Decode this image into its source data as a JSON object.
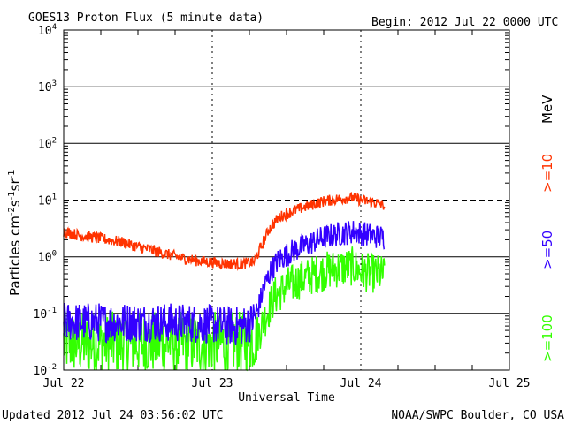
{
  "chart_data": {
    "type": "line",
    "title": "GOES13 Proton Flux (5 minute data)",
    "begin_label": "Begin: 2012 Jul 22 0000 UTC",
    "updated_label": "Updated 2012 Jul 24 03:56:02 UTC",
    "source_label": "NOAA/SWPC Boulder, CO USA",
    "xlabel": "Universal Time",
    "ylabel": {
      "base": "Particles cm",
      "exp1": "-2",
      "mid1": "s",
      "exp2": "-1",
      "mid2": "sr",
      "exp3": "-1"
    },
    "y_scale": "log",
    "ylim": [
      0.01,
      10000
    ],
    "y_ticks": [
      {
        "value": 10000,
        "base": "10",
        "exp": "4"
      },
      {
        "value": 1000,
        "base": "10",
        "exp": "3"
      },
      {
        "value": 100,
        "base": "10",
        "exp": "2"
      },
      {
        "value": 10,
        "base": "10",
        "exp": "1"
      },
      {
        "value": 1,
        "base": "10",
        "exp": "0"
      },
      {
        "value": 0.1,
        "base": "10",
        "exp": "-1"
      },
      {
        "value": 0.01,
        "base": "10",
        "exp": "-2"
      }
    ],
    "xlim_days": [
      0,
      3
    ],
    "x_ticks": [
      {
        "day": 0,
        "label": "Jul 22"
      },
      {
        "day": 1,
        "label": "Jul 23"
      },
      {
        "day": 2,
        "label": "Jul 24"
      },
      {
        "day": 3,
        "label": "Jul 25"
      }
    ],
    "grid": "solid horizontal decades; dotted vertical 6-hour marks",
    "threshold": {
      "value": 10,
      "style": "dashed"
    },
    "energy_unit": "MeV",
    "series": [
      {
        "name": ">=10",
        "color": "#ff3300",
        "noise": 0.1,
        "points": [
          [
            0.0,
            2.8
          ],
          [
            0.1,
            2.4
          ],
          [
            0.2,
            2.2
          ],
          [
            0.3,
            2.0
          ],
          [
            0.4,
            1.8
          ],
          [
            0.5,
            1.5
          ],
          [
            0.6,
            1.3
          ],
          [
            0.7,
            1.1
          ],
          [
            0.8,
            0.95
          ],
          [
            0.9,
            0.85
          ],
          [
            1.0,
            0.8
          ],
          [
            1.1,
            0.75
          ],
          [
            1.2,
            0.75
          ],
          [
            1.28,
            0.8
          ],
          [
            1.33,
            1.5
          ],
          [
            1.38,
            3.0
          ],
          [
            1.45,
            5.0
          ],
          [
            1.55,
            6.5
          ],
          [
            1.65,
            8.0
          ],
          [
            1.75,
            9.5
          ],
          [
            1.85,
            10.5
          ],
          [
            1.95,
            11.0
          ],
          [
            2.0,
            10.0
          ],
          [
            2.1,
            9.0
          ],
          [
            2.16,
            8.0
          ]
        ]
      },
      {
        "name": ">=50",
        "color": "#3300ff",
        "noise": 0.22,
        "points": [
          [
            0.0,
            0.07
          ],
          [
            0.2,
            0.07
          ],
          [
            0.4,
            0.07
          ],
          [
            0.6,
            0.07
          ],
          [
            0.8,
            0.068
          ],
          [
            1.0,
            0.065
          ],
          [
            1.1,
            0.06
          ],
          [
            1.2,
            0.06
          ],
          [
            1.26,
            0.07
          ],
          [
            1.3,
            0.1
          ],
          [
            1.35,
            0.3
          ],
          [
            1.4,
            0.6
          ],
          [
            1.45,
            0.9
          ],
          [
            1.55,
            1.3
          ],
          [
            1.65,
            1.7
          ],
          [
            1.75,
            2.2
          ],
          [
            1.85,
            2.5
          ],
          [
            1.95,
            2.8
          ],
          [
            2.0,
            2.6
          ],
          [
            2.1,
            2.3
          ],
          [
            2.16,
            2.2
          ]
        ]
      },
      {
        "name": ">=100",
        "color": "#33ff00",
        "noise": 0.35,
        "points": [
          [
            0.0,
            0.03
          ],
          [
            0.2,
            0.03
          ],
          [
            0.4,
            0.03
          ],
          [
            0.6,
            0.03
          ],
          [
            0.8,
            0.03
          ],
          [
            1.0,
            0.03
          ],
          [
            1.2,
            0.03
          ],
          [
            1.28,
            0.035
          ],
          [
            1.32,
            0.05
          ],
          [
            1.38,
            0.12
          ],
          [
            1.42,
            0.2
          ],
          [
            1.5,
            0.3
          ],
          [
            1.6,
            0.4
          ],
          [
            1.7,
            0.5
          ],
          [
            1.8,
            0.6
          ],
          [
            1.9,
            0.65
          ],
          [
            1.95,
            0.68
          ],
          [
            2.0,
            0.55
          ],
          [
            2.1,
            0.5
          ],
          [
            2.16,
            0.48
          ]
        ]
      }
    ]
  }
}
